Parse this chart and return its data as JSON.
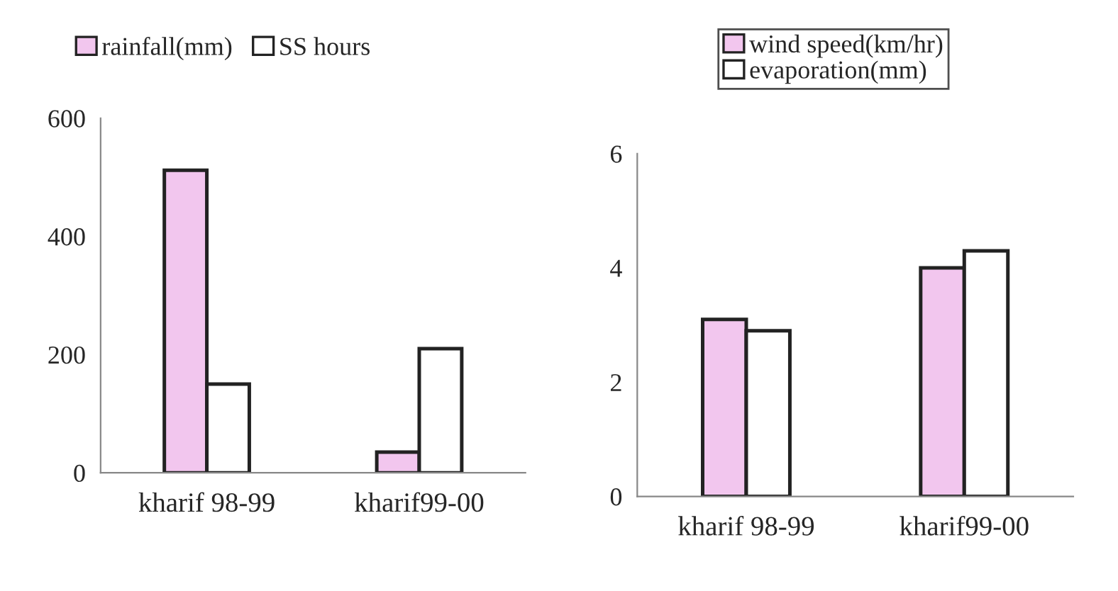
{
  "chart_data": [
    {
      "type": "bar",
      "categories": [
        "kharif 98-99",
        "kharif99-00"
      ],
      "series": [
        {
          "name": "rainfall(mm)",
          "color": "#f2c6ee",
          "values": [
            512,
            35
          ]
        },
        {
          "name": "SS hours",
          "color": "#ffffff",
          "values": [
            150,
            210
          ]
        }
      ],
      "ylim": [
        0,
        600
      ],
      "yticks": [
        0,
        200,
        400,
        600
      ],
      "legend": "top left",
      "grid": false
    },
    {
      "type": "bar",
      "categories": [
        "kharif 98-99",
        "kharif99-00"
      ],
      "series": [
        {
          "name": "wind speed(km/hr)",
          "color": "#f2c6ee",
          "values": [
            3.1,
            4.0
          ]
        },
        {
          "name": "evaporation(mm)",
          "color": "#ffffff",
          "values": [
            2.9,
            4.3
          ]
        }
      ],
      "ylim": [
        0,
        6
      ],
      "yticks": [
        0,
        2,
        4,
        6
      ],
      "legend": "top",
      "grid": false
    }
  ]
}
